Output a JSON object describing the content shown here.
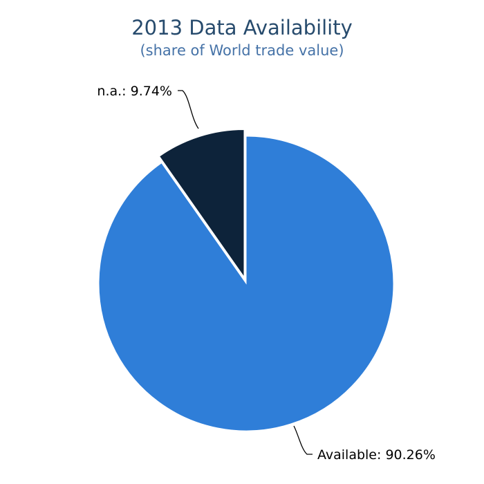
{
  "chart_data": {
    "type": "pie",
    "title": "2013 Data Availability",
    "subtitle": "(share of World trade value)",
    "slices": [
      {
        "label": "Available",
        "value": 90.26,
        "display": "Available: 90.26%",
        "color": "#2f7ed8",
        "exploded": false
      },
      {
        "label": "n.a.",
        "value": 9.74,
        "display": "n.a.: 9.74%",
        "color": "#0d233a",
        "exploded": true
      }
    ]
  }
}
